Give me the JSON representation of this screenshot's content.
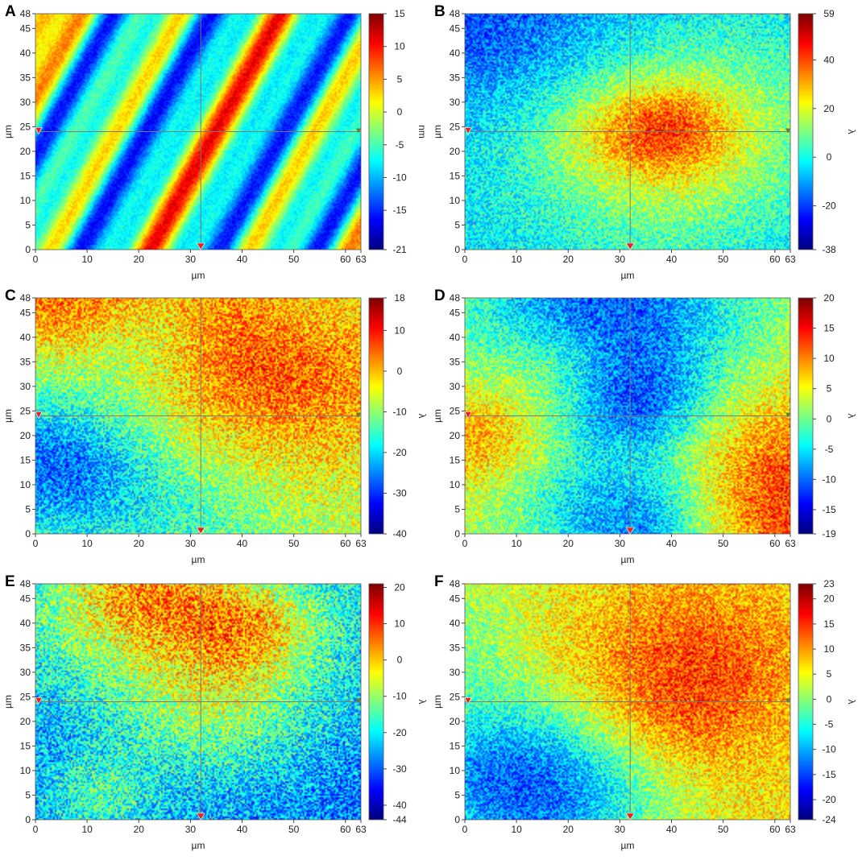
{
  "chart_data": [
    {
      "panel": "A",
      "type": "heatmap",
      "variant": "stripes",
      "xlabel": "µm",
      "ylabel": "µm",
      "xlim": [
        0,
        63
      ],
      "ylim": [
        0,
        48
      ],
      "x_ticks": [
        "0",
        "10",
        "20",
        "30",
        "40",
        "50",
        "60",
        "63"
      ],
      "y_ticks": [
        "0",
        "5",
        "10",
        "15",
        "20",
        "25",
        "30",
        "35",
        "40",
        "45",
        "48"
      ],
      "cursor": {
        "x": 32,
        "y": 24
      },
      "colorbar": {
        "title": "nm",
        "min": -21,
        "max": 15,
        "ticks": [
          "15",
          "10",
          "5",
          "0",
          "-5",
          "-10",
          "-15",
          "-21"
        ]
      }
    },
    {
      "panel": "B",
      "type": "heatmap",
      "variant": "blobs",
      "xlabel": "µm",
      "ylabel": "µm",
      "xlim": [
        0,
        63
      ],
      "ylim": [
        0,
        48
      ],
      "x_ticks": [
        "0",
        "10",
        "20",
        "30",
        "40",
        "50",
        "60",
        "63"
      ],
      "y_ticks": [
        "0",
        "5",
        "10",
        "15",
        "20",
        "25",
        "30",
        "35",
        "40",
        "45",
        "48"
      ],
      "cursor": {
        "x": 32,
        "y": 24
      },
      "colorbar": {
        "title": "λ",
        "min": -38,
        "max": 59,
        "ticks": [
          "59",
          "40",
          "20",
          "0",
          "-20",
          "-38"
        ]
      }
    },
    {
      "panel": "C",
      "type": "heatmap",
      "variant": "blobs",
      "xlabel": "µm",
      "ylabel": "µm",
      "xlim": [
        0,
        63
      ],
      "ylim": [
        0,
        48
      ],
      "x_ticks": [
        "0",
        "10",
        "20",
        "30",
        "40",
        "50",
        "60",
        "63"
      ],
      "y_ticks": [
        "0",
        "5",
        "10",
        "15",
        "20",
        "25",
        "30",
        "35",
        "40",
        "45",
        "48"
      ],
      "cursor": {
        "x": 32,
        "y": 24
      },
      "colorbar": {
        "title": "λ",
        "min": -40,
        "max": 18,
        "ticks": [
          "18",
          "10",
          "0",
          "-10",
          "-20",
          "-30",
          "-40"
        ]
      }
    },
    {
      "panel": "D",
      "type": "heatmap",
      "variant": "blobs",
      "xlabel": "µm",
      "ylabel": "µm",
      "xlim": [
        0,
        63
      ],
      "ylim": [
        0,
        48
      ],
      "x_ticks": [
        "0",
        "10",
        "20",
        "30",
        "40",
        "50",
        "60",
        "63"
      ],
      "y_ticks": [
        "0",
        "5",
        "10",
        "15",
        "20",
        "25",
        "30",
        "35",
        "40",
        "45",
        "48"
      ],
      "cursor": {
        "x": 32,
        "y": 24
      },
      "colorbar": {
        "title": "λ",
        "min": -19,
        "max": 20,
        "ticks": [
          "20",
          "15",
          "10",
          "5",
          "0",
          "-5",
          "-10",
          "-15",
          "-19"
        ]
      }
    },
    {
      "panel": "E",
      "type": "heatmap",
      "variant": "blobs",
      "xlabel": "µm",
      "ylabel": "µm",
      "xlim": [
        0,
        63
      ],
      "ylim": [
        0,
        48
      ],
      "x_ticks": [
        "0",
        "10",
        "20",
        "30",
        "40",
        "50",
        "60",
        "63"
      ],
      "y_ticks": [
        "0",
        "5",
        "10",
        "15",
        "20",
        "25",
        "30",
        "35",
        "40",
        "45",
        "48"
      ],
      "cursor": {
        "x": 32,
        "y": 24
      },
      "colorbar": {
        "title": "λ",
        "min": -44,
        "max": 21,
        "ticks": [
          "20",
          "10",
          "0",
          "-10",
          "-20",
          "-30",
          "-40",
          "-44"
        ]
      }
    },
    {
      "panel": "F",
      "type": "heatmap",
      "variant": "blobs",
      "xlabel": "µm",
      "ylabel": "µm",
      "xlim": [
        0,
        63
      ],
      "ylim": [
        0,
        48
      ],
      "x_ticks": [
        "0",
        "10",
        "20",
        "30",
        "40",
        "50",
        "60",
        "63"
      ],
      "y_ticks": [
        "0",
        "5",
        "10",
        "15",
        "20",
        "25",
        "30",
        "35",
        "40",
        "45",
        "48"
      ],
      "cursor": {
        "x": 32,
        "y": 24
      },
      "colorbar": {
        "title": "λ",
        "min": -24,
        "max": 23,
        "ticks": [
          "23",
          "20",
          "15",
          "10",
          "5",
          "0",
          "-5",
          "-10",
          "-15",
          "-20",
          "-24"
        ]
      }
    }
  ]
}
